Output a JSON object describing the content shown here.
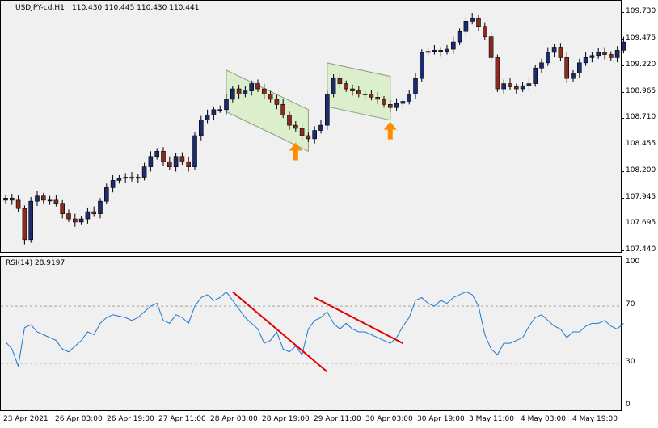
{
  "header": {
    "symbol": "USDJPY-cd,H1",
    "ohlc": "110.430 110.445 110.430 110.441"
  },
  "rsi": {
    "label": "RSI(14) 28.9197"
  },
  "colors": {
    "background": "#f0f0f0",
    "bull_candle": "#1c2b6e",
    "bear_candle": "#8b2a1f",
    "channel_fill": "#d8efc8",
    "channel_border": "#7a8f74",
    "arrow": "#ff8c00",
    "rsi_line": "#1e78d0",
    "trend_line": "#e00000",
    "level_line": "#a0a0a0"
  },
  "chart_data": [
    {
      "type": "candlestick",
      "title": "USDJPY-cd,H1",
      "y_ticks": [
        "109.730",
        "109.475",
        "109.220",
        "108.965",
        "108.710",
        "108.455",
        "108.200",
        "107.945",
        "107.695",
        "107.440"
      ],
      "ylim": [
        107.44,
        109.73
      ],
      "series": [
        {
          "name": "close",
          "values": [
            107.95,
            107.93,
            107.85,
            107.55,
            107.92,
            107.97,
            107.93,
            107.93,
            107.9,
            107.8,
            107.75,
            107.72,
            107.75,
            107.82,
            107.8,
            107.92,
            108.05,
            108.12,
            108.14,
            108.15,
            108.14,
            108.15,
            108.25,
            108.35,
            108.4,
            108.3,
            108.25,
            108.35,
            108.3,
            108.25,
            108.55,
            108.7,
            108.75,
            108.8,
            108.8,
            108.9,
            109.0,
            108.95,
            108.98,
            109.05,
            109.0,
            108.95,
            108.9,
            108.85,
            108.75,
            108.65,
            108.62,
            108.55,
            108.52,
            108.6,
            108.65,
            108.95,
            109.1,
            109.05,
            109.0,
            108.98,
            108.95,
            108.95,
            108.92,
            108.9,
            108.85,
            108.82,
            108.86,
            108.88,
            108.95,
            109.1,
            109.35,
            109.36,
            109.37,
            109.36,
            109.38,
            109.45,
            109.55,
            109.65,
            109.68,
            109.6,
            109.5,
            109.3,
            109.0,
            109.05,
            109.02,
            109.0,
            109.03,
            109.05,
            109.2,
            109.25,
            109.35,
            109.4,
            109.3,
            109.1,
            109.15,
            109.25,
            109.3,
            109.32,
            109.35,
            109.33,
            109.3,
            109.37,
            109.45
          ]
        }
      ],
      "annotations": [
        "descending channel 1",
        "descending channel 2",
        "buy arrow 1",
        "buy arrow 2"
      ]
    },
    {
      "type": "line",
      "title": "RSI(14) 28.9197",
      "y_ticks": [
        "100",
        "70",
        "30",
        "0"
      ],
      "ylim": [
        0,
        100
      ],
      "levels": [
        70,
        30
      ],
      "series": [
        {
          "name": "RSI(14)",
          "values": [
            45,
            40,
            28,
            55,
            57,
            52,
            50,
            48,
            46,
            40,
            38,
            42,
            46,
            52,
            50,
            58,
            62,
            64,
            63,
            62,
            60,
            62,
            66,
            70,
            72,
            60,
            58,
            64,
            62,
            58,
            70,
            76,
            78,
            74,
            76,
            80,
            74,
            68,
            62,
            58,
            54,
            44,
            46,
            52,
            40,
            38,
            42,
            36,
            54,
            60,
            62,
            66,
            58,
            54,
            58,
            54,
            52,
            52,
            50,
            48,
            46,
            44,
            48,
            56,
            62,
            74,
            76,
            72,
            70,
            74,
            72,
            76,
            78,
            80,
            78,
            70,
            50,
            40,
            36,
            44,
            44,
            46,
            48,
            56,
            62,
            64,
            60,
            56,
            54,
            48,
            52,
            52,
            56,
            58,
            58,
            60,
            56,
            54,
            58
          ]
        }
      ],
      "annotations": [
        "bearish divergence line 1",
        "bearish divergence line 2"
      ]
    }
  ],
  "x_ticks": [
    "23 Apr 2021",
    "26 Apr 03:00",
    "26 Apr 19:00",
    "27 Apr 11:00",
    "28 Apr 03:00",
    "28 Apr 19:00",
    "29 Apr 11:00",
    "30 Apr 03:00",
    "30 Apr 19:00",
    "3 May 11:00",
    "4 May 03:00",
    "4 May 19:00"
  ]
}
